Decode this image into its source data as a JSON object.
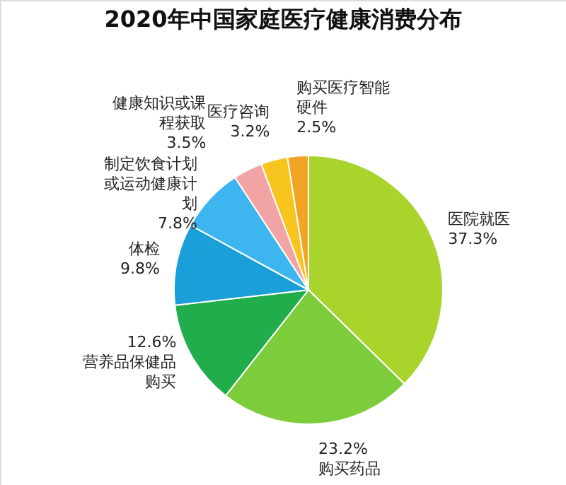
{
  "chart_data": {
    "type": "pie",
    "title": "2020年中国家庭医疗健康消费分布",
    "categories": [
      "医院就医",
      "购买药品",
      "营养品保健品购买",
      "体检",
      "制定饮食计划或运动健康计划",
      "健康知识或课程获取",
      "医疗咨询",
      "购买医疗智能硬件"
    ],
    "values": [
      37.3,
      23.2,
      12.6,
      9.8,
      7.8,
      3.5,
      3.2,
      2.5
    ],
    "value_labels": [
      "37.3%",
      "23.2%",
      "12.6%",
      "9.8%",
      "7.8%",
      "3.5%",
      "3.2%",
      "2.5%"
    ],
    "colors": [
      "#a9d42c",
      "#7dcc3c",
      "#21ad4b",
      "#1b9fd8",
      "#3db5ee",
      "#f2a3a3",
      "#f7c51d",
      "#f2a425"
    ]
  }
}
